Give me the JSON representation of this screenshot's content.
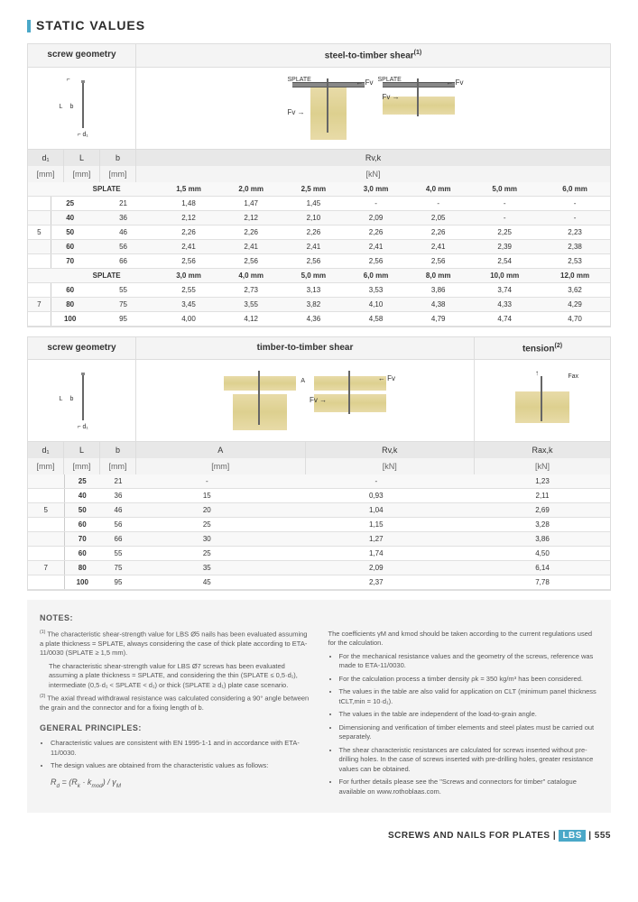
{
  "title": "STATIC VALUES",
  "t1": {
    "geo_hdr": "screw geometry",
    "shear_hdr": "steel-to-timber shear",
    "shear_sup": "(1)",
    "col_d1": "d₁",
    "col_L": "L",
    "col_b": "b",
    "unit_mm": "[mm]",
    "unit_kn": "[kN]",
    "rvk": "Rv,k",
    "splate_lbl": "SPLATE",
    "splate": "SPLATE",
    "fv": "Fv",
    "splate1": [
      "1,5 mm",
      "2,0 mm",
      "2,5 mm",
      "3,0 mm",
      "4,0 mm",
      "5,0 mm",
      "6,0 mm"
    ],
    "splate2": [
      "3,0 mm",
      "4,0 mm",
      "5,0 mm",
      "6,0 mm",
      "8,0 mm",
      "10,0 mm",
      "12,0 mm"
    ],
    "g5": [
      {
        "d": "",
        "L": "25",
        "b": "21",
        "v": [
          "1,48",
          "1,47",
          "1,45",
          "-",
          "-",
          "-",
          "-"
        ]
      },
      {
        "d": "",
        "L": "40",
        "b": "36",
        "v": [
          "2,12",
          "2,12",
          "2,10",
          "2,09",
          "2,05",
          "-",
          "-"
        ]
      },
      {
        "d": "5",
        "L": "50",
        "b": "46",
        "v": [
          "2,26",
          "2,26",
          "2,26",
          "2,26",
          "2,26",
          "2,25",
          "2,23"
        ]
      },
      {
        "d": "",
        "L": "60",
        "b": "56",
        "v": [
          "2,41",
          "2,41",
          "2,41",
          "2,41",
          "2,41",
          "2,39",
          "2,38"
        ]
      },
      {
        "d": "",
        "L": "70",
        "b": "66",
        "v": [
          "2,56",
          "2,56",
          "2,56",
          "2,56",
          "2,56",
          "2,54",
          "2,53"
        ]
      }
    ],
    "g7": [
      {
        "d": "",
        "L": "60",
        "b": "55",
        "v": [
          "2,55",
          "2,73",
          "3,13",
          "3,53",
          "3,86",
          "3,74",
          "3,62"
        ]
      },
      {
        "d": "7",
        "L": "80",
        "b": "75",
        "v": [
          "3,45",
          "3,55",
          "3,82",
          "4,10",
          "4,38",
          "4,33",
          "4,29"
        ]
      },
      {
        "d": "",
        "L": "100",
        "b": "95",
        "v": [
          "4,00",
          "4,12",
          "4,36",
          "4,58",
          "4,79",
          "4,74",
          "4,70"
        ]
      }
    ]
  },
  "t2": {
    "geo_hdr": "screw geometry",
    "shear_hdr": "timber-to-timber shear",
    "tens_hdr": "tension",
    "tens_sup": "(2)",
    "col_A": "A",
    "rvk": "Rv,k",
    "rax": "Rax,k",
    "fv": "Fv",
    "fax": "Fax",
    "rows": [
      {
        "d": "",
        "L": "25",
        "b": "21",
        "A": "-",
        "R": "-",
        "Rax": "1,23"
      },
      {
        "d": "",
        "L": "40",
        "b": "36",
        "A": "15",
        "R": "0,93",
        "Rax": "2,11"
      },
      {
        "d": "5",
        "L": "50",
        "b": "46",
        "A": "20",
        "R": "1,04",
        "Rax": "2,69"
      },
      {
        "d": "",
        "L": "60",
        "b": "56",
        "A": "25",
        "R": "1,15",
        "Rax": "3,28"
      },
      {
        "d": "",
        "L": "70",
        "b": "66",
        "A": "30",
        "R": "1,27",
        "Rax": "3,86"
      },
      {
        "d": "",
        "L": "60",
        "b": "55",
        "A": "25",
        "R": "1,74",
        "Rax": "4,50"
      },
      {
        "d": "7",
        "L": "80",
        "b": "75",
        "A": "35",
        "R": "2,09",
        "Rax": "6,14"
      },
      {
        "d": "",
        "L": "100",
        "b": "95",
        "A": "45",
        "R": "2,37",
        "Rax": "7,78"
      }
    ]
  },
  "notes": {
    "hdr": "NOTES:",
    "n1": "The characteristic shear-strength value for LBS Ø5 nails has been evaluated assuming a plate thickness = SPLATE, always considering the case of thick plate according to ETA-11/0030 (SPLATE ≥ 1,5 mm).",
    "n1b": "The characteristic shear-strength value for LBS Ø7 screws has been evaluated assuming a plate thickness = SPLATE, and considering the thin (SPLATE ≤ 0,5·d₁), intermediate (0,5·d₁ < SPLATE < d₁) or thick (SPLATE ≥ d₁) plate case scenario.",
    "n2": "The axial thread withdrawal resistance was calculated considering a 90° angle between the grain and the connector and for a fixing length of b.",
    "gen_hdr": "GENERAL PRINCIPLES:",
    "g1": "Characteristic values are consistent with EN 1995-1-1 and in accordance with ETA-11/0030.",
    "g2": "The design values are obtained from the characteristic values as follows:",
    "formula": "Rd = (Rk · kmod) / γM",
    "r1": "The coefficients γM and kmod should be taken according to the current regulations used for the calculation.",
    "r2": "For the mechanical resistance values and the geometry of the screws, reference was made to ETA-11/0030.",
    "r3": "For the calculation process a timber density ρk = 350 kg/m³ has been considered.",
    "r4": "The values in the table are also valid for application on CLT (minimum panel thickness tCLT,min = 10·d₁).",
    "r5": "The values in the table are independent of the load-to-grain angle.",
    "r6": "Dimensioning and verification of timber elements and steel plates must be carried out separately.",
    "r7": "The shear characteristic resistances are calculated for screws inserted without pre-drilling holes. In the case of screws inserted with pre-drilling holes, greater resistance values can be obtained.",
    "r8": "For further details please see the \"Screws and connectors for timber\" catalogue available on www.rothoblaas.com."
  },
  "footer": {
    "txt": "SCREWS AND NAILS FOR PLATES |",
    "brand": "LBS",
    "page": "| 555"
  }
}
